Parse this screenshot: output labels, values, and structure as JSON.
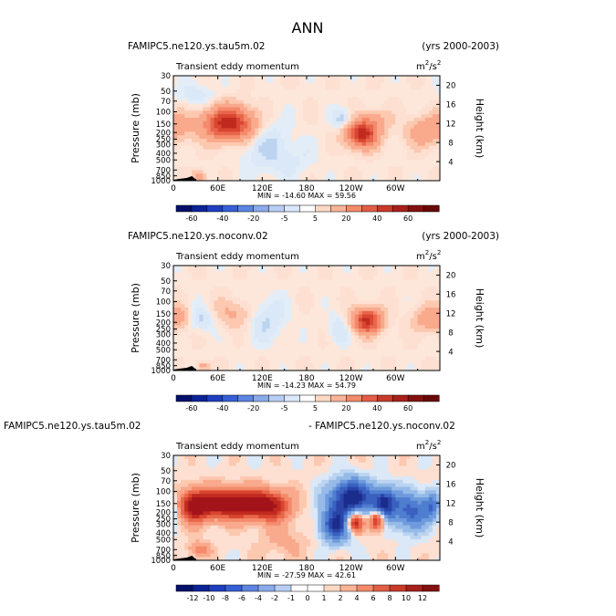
{
  "figure": {
    "title": "ANN"
  },
  "chart_data": [
    {
      "type": "heatmap",
      "case_left": "FAMIPC5.ne120.ys.tau5m.02",
      "case_right": "(yrs 2000-2003)",
      "variable": "Transient eddy momentum",
      "units_base": "m",
      "units_exp1": "2",
      "units_mid": "/s",
      "units_exp2": "2",
      "ylabel": "Pressure (mb)",
      "ylabel2": "Height (km)",
      "x_ticks": [
        "0",
        "60E",
        "120E",
        "180",
        "120W",
        "60W"
      ],
      "x_tick_values": [
        0,
        60,
        120,
        180,
        240,
        300
      ],
      "xlim": [
        0,
        360
      ],
      "y_ticks": [
        "30",
        "50",
        "70",
        "100",
        "150",
        "200",
        "250",
        "300",
        "400",
        "500",
        "700",
        "850",
        "1000"
      ],
      "y_tick_values": [
        30,
        50,
        70,
        100,
        150,
        200,
        250,
        300,
        400,
        500,
        700,
        850,
        1000
      ],
      "ylim": [
        30,
        1000
      ],
      "height_ticks": [
        "20",
        "16",
        "12",
        "8",
        "4"
      ],
      "height_tick_values": [
        20,
        16,
        12,
        8,
        4
      ],
      "stats": "MIN = -14.60   MAX =  59.56",
      "min": -14.6,
      "max": 59.56,
      "colorbar_labels": [
        "-60",
        "-40",
        "-20",
        "-5",
        "5",
        "20",
        "40",
        "60"
      ],
      "levels": [
        -60,
        -50,
        -40,
        -30,
        -20,
        -10,
        -5,
        -2,
        2,
        5,
        10,
        20,
        30,
        40,
        50,
        60
      ],
      "features": [
        {
          "lon": 75,
          "p": 150,
          "amp": 58,
          "wlon": 22,
          "wlogp": 0.16
        },
        {
          "lon": 255,
          "p": 210,
          "amp": 55,
          "wlon": 14,
          "wlogp": 0.13
        },
        {
          "lon": 5,
          "p": 160,
          "amp": 12,
          "wlon": 16,
          "wlogp": 0.16
        },
        {
          "lon": 335,
          "p": 200,
          "amp": 14,
          "wlon": 15,
          "wlogp": 0.14
        },
        {
          "lon": 275,
          "p": 130,
          "amp": 10,
          "wlon": 14,
          "wlogp": 0.1
        },
        {
          "lon": 35,
          "p": 880,
          "amp": 18,
          "wlon": 6,
          "wlogp": 0.06
        },
        {
          "lon": 120,
          "p": 250,
          "amp": -6,
          "wlon": 25,
          "wlogp": 0.25
        },
        {
          "lon": 230,
          "p": 130,
          "amp": -9,
          "wlon": 10,
          "wlogp": 0.1
        },
        {
          "lon": 30,
          "p": 60,
          "amp": -5,
          "wlon": 20,
          "wlogp": 0.15
        },
        {
          "lon": 150,
          "p": 500,
          "amp": -4,
          "wlon": 30,
          "wlogp": 0.2
        }
      ]
    },
    {
      "type": "heatmap",
      "case_left": "FAMIPC5.ne120.ys.noconv.02",
      "case_right": "(yrs 2000-2003)",
      "variable": "Transient eddy momentum",
      "units_base": "m",
      "units_exp1": "2",
      "units_mid": "/s",
      "units_exp2": "2",
      "ylabel": "Pressure (mb)",
      "ylabel2": "Height (km)",
      "x_ticks": [
        "0",
        "60E",
        "120E",
        "180",
        "120W",
        "60W"
      ],
      "x_tick_values": [
        0,
        60,
        120,
        180,
        240,
        300
      ],
      "xlim": [
        0,
        360
      ],
      "y_ticks": [
        "30",
        "50",
        "70",
        "100",
        "150",
        "200",
        "250",
        "300",
        "400",
        "500",
        "700",
        "850",
        "1000"
      ],
      "y_tick_values": [
        30,
        50,
        70,
        100,
        150,
        200,
        250,
        300,
        400,
        500,
        700,
        850,
        1000
      ],
      "ylim": [
        30,
        1000
      ],
      "height_ticks": [
        "20",
        "16",
        "12",
        "8",
        "4"
      ],
      "height_tick_values": [
        20,
        16,
        12,
        8,
        4
      ],
      "stats": "MIN = -14.23   MAX =  54.79",
      "min": -14.23,
      "max": 54.79,
      "colorbar_labels": [
        "-60",
        "-40",
        "-20",
        "-5",
        "5",
        "20",
        "40",
        "60"
      ],
      "levels": [
        -60,
        -50,
        -40,
        -30,
        -20,
        -10,
        -5,
        -2,
        2,
        5,
        10,
        20,
        30,
        40,
        50,
        60
      ],
      "features": [
        {
          "lon": 262,
          "p": 190,
          "amp": 52,
          "wlon": 13,
          "wlogp": 0.12
        },
        {
          "lon": 345,
          "p": 180,
          "amp": 14,
          "wlon": 14,
          "wlogp": 0.13
        },
        {
          "lon": 80,
          "p": 150,
          "amp": 10,
          "wlon": 20,
          "wlogp": 0.14
        },
        {
          "lon": 8,
          "p": 170,
          "amp": 10,
          "wlon": 10,
          "wlogp": 0.12
        },
        {
          "lon": 40,
          "p": 180,
          "amp": -8,
          "wlon": 14,
          "wlogp": 0.12
        },
        {
          "lon": 125,
          "p": 180,
          "amp": -7,
          "wlon": 20,
          "wlogp": 0.22
        },
        {
          "lon": 225,
          "p": 250,
          "amp": -6,
          "wlon": 12,
          "wlogp": 0.15
        },
        {
          "lon": 40,
          "p": 880,
          "amp": 12,
          "wlon": 6,
          "wlogp": 0.05
        }
      ]
    },
    {
      "type": "heatmap",
      "case_left": "FAMIPC5.ne120.ys.tau5m.02",
      "case_right": "- FAMIPC5.ne120.ys.noconv.02",
      "variable": "Transient eddy momentum",
      "units_base": "m",
      "units_exp1": "2",
      "units_mid": "/s",
      "units_exp2": "2",
      "ylabel": "Pressure (mb)",
      "ylabel2": "Height (km)",
      "x_ticks": [
        "0",
        "60E",
        "120E",
        "180",
        "120W",
        "60W"
      ],
      "x_tick_values": [
        0,
        60,
        120,
        180,
        240,
        300
      ],
      "xlim": [
        0,
        360
      ],
      "y_ticks": [
        "30",
        "50",
        "70",
        "100",
        "150",
        "200",
        "250",
        "300",
        "400",
        "500",
        "700",
        "850",
        "1000"
      ],
      "y_tick_values": [
        30,
        50,
        70,
        100,
        150,
        200,
        250,
        300,
        400,
        500,
        700,
        850,
        1000
      ],
      "ylim": [
        30,
        1000
      ],
      "height_ticks": [
        "20",
        "16",
        "12",
        "8",
        "4"
      ],
      "height_tick_values": [
        20,
        16,
        12,
        8,
        4
      ],
      "stats": "MIN = -27.59   MAX =  42.61",
      "min": -27.59,
      "max": 42.61,
      "colorbar_labels": [
        "-12",
        "-10",
        "-8",
        "-6",
        "-4",
        "-2",
        "-1",
        "0",
        "1",
        "2",
        "4",
        "6",
        "8",
        "10",
        "12"
      ],
      "levels": [
        -12,
        -10,
        -8,
        -6,
        -4,
        -2,
        -1,
        0,
        1,
        2,
        4,
        6,
        8,
        10,
        12
      ],
      "features": [
        {
          "lon": 30,
          "p": 160,
          "amp": 14,
          "wlon": 16,
          "wlogp": 0.16
        },
        {
          "lon": 80,
          "p": 150,
          "amp": 16,
          "wlon": 25,
          "wlogp": 0.15
        },
        {
          "lon": 130,
          "p": 160,
          "amp": 12,
          "wlon": 20,
          "wlogp": 0.15
        },
        {
          "lon": 240,
          "p": 120,
          "amp": -14,
          "wlon": 20,
          "wlogp": 0.18
        },
        {
          "lon": 220,
          "p": 300,
          "amp": -12,
          "wlon": 15,
          "wlogp": 0.18
        },
        {
          "lon": 285,
          "p": 150,
          "amp": -13,
          "wlon": 12,
          "wlogp": 0.16
        },
        {
          "lon": 245,
          "p": 280,
          "amp": 14,
          "wlon": 8,
          "wlogp": 0.1
        },
        {
          "lon": 275,
          "p": 260,
          "amp": 13,
          "wlon": 7,
          "wlogp": 0.1
        },
        {
          "lon": 320,
          "p": 200,
          "amp": -9,
          "wlon": 15,
          "wlogp": 0.2
        },
        {
          "lon": 350,
          "p": 160,
          "amp": -8,
          "wlon": 10,
          "wlogp": 0.15
        },
        {
          "lon": 35,
          "p": 700,
          "amp": 5,
          "wlon": 10,
          "wlogp": 0.08
        },
        {
          "lon": 150,
          "p": 500,
          "amp": 2,
          "wlon": 25,
          "wlogp": 0.2
        }
      ]
    }
  ]
}
